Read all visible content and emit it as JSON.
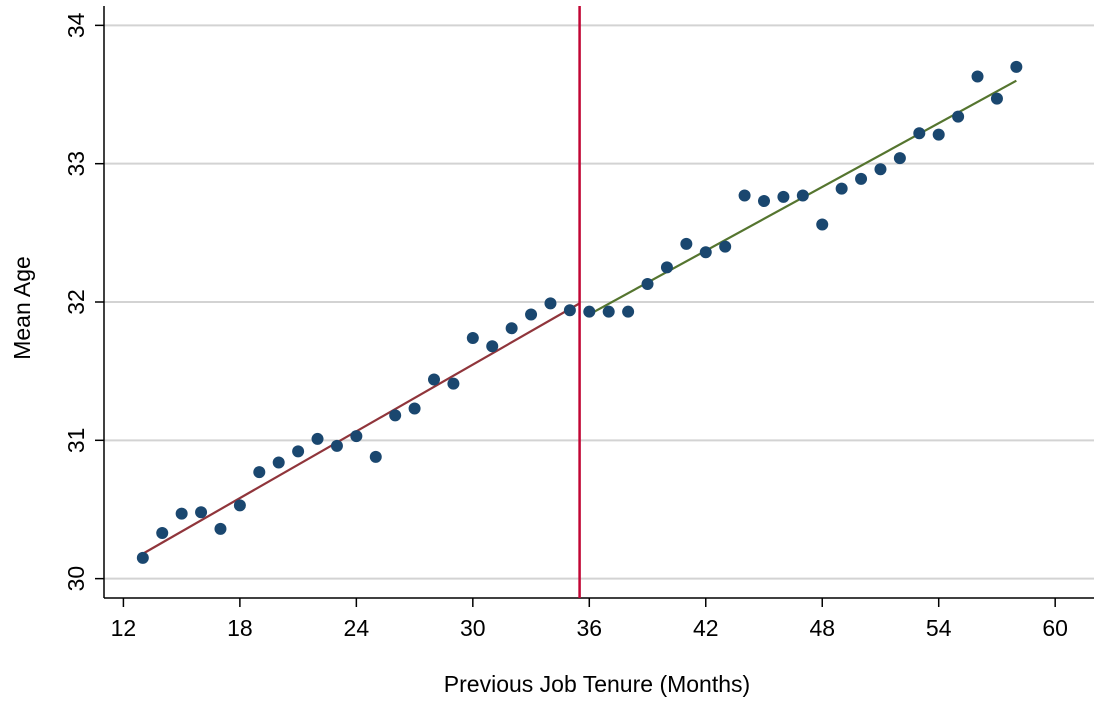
{
  "chart_data": {
    "type": "scatter",
    "title": "",
    "xlabel": "Previous Job Tenure (Months)",
    "ylabel": "Mean Age",
    "xlim": [
      11,
      62
    ],
    "ylim": [
      29.86,
      34.14
    ],
    "x_ticks": [
      12,
      18,
      24,
      30,
      36,
      42,
      48,
      54,
      60
    ],
    "y_ticks": [
      30,
      31,
      32,
      33,
      34
    ],
    "grid": true,
    "legend": "none",
    "cutoff_x": 35.5,
    "series": [
      {
        "marker_color": "#1a476f",
        "points": [
          [
            13,
            30.15
          ],
          [
            14,
            30.33
          ],
          [
            15,
            30.47
          ],
          [
            16,
            30.48
          ],
          [
            17,
            30.36
          ],
          [
            18,
            30.53
          ],
          [
            19,
            30.77
          ],
          [
            20,
            30.84
          ],
          [
            21,
            30.92
          ],
          [
            22,
            31.01
          ],
          [
            23,
            30.96
          ],
          [
            24,
            31.03
          ],
          [
            25,
            30.88
          ],
          [
            26,
            31.18
          ],
          [
            27,
            31.23
          ],
          [
            28,
            31.44
          ],
          [
            29,
            31.41
          ],
          [
            30,
            31.74
          ],
          [
            31,
            31.68
          ],
          [
            32,
            31.81
          ],
          [
            33,
            31.91
          ],
          [
            34,
            31.99
          ],
          [
            35,
            31.94
          ],
          [
            36,
            31.93
          ],
          [
            37,
            31.93
          ],
          [
            38,
            31.93
          ],
          [
            39,
            32.13
          ],
          [
            40,
            32.25
          ],
          [
            41,
            32.42
          ],
          [
            42,
            32.36
          ],
          [
            43,
            32.4
          ],
          [
            44,
            32.77
          ],
          [
            45,
            32.73
          ],
          [
            46,
            32.76
          ],
          [
            47,
            32.77
          ],
          [
            48,
            32.56
          ],
          [
            49,
            32.82
          ],
          [
            50,
            32.89
          ],
          [
            51,
            32.96
          ],
          [
            52,
            33.04
          ],
          [
            53,
            33.22
          ],
          [
            54,
            33.21
          ],
          [
            55,
            33.34
          ],
          [
            56,
            33.63
          ],
          [
            57,
            33.47
          ],
          [
            58,
            33.7
          ]
        ]
      }
    ],
    "fit_lines": [
      {
        "color": "#90353b",
        "x": [
          13,
          35.5
        ],
        "y": [
          30.18,
          31.99
        ]
      },
      {
        "color": "#55752f",
        "x": [
          36,
          58
        ],
        "y": [
          31.91,
          33.6
        ]
      }
    ],
    "colors": {
      "cutoff_line": "#c10534",
      "grid": "#d3d3d3",
      "axis": "#000000"
    }
  }
}
